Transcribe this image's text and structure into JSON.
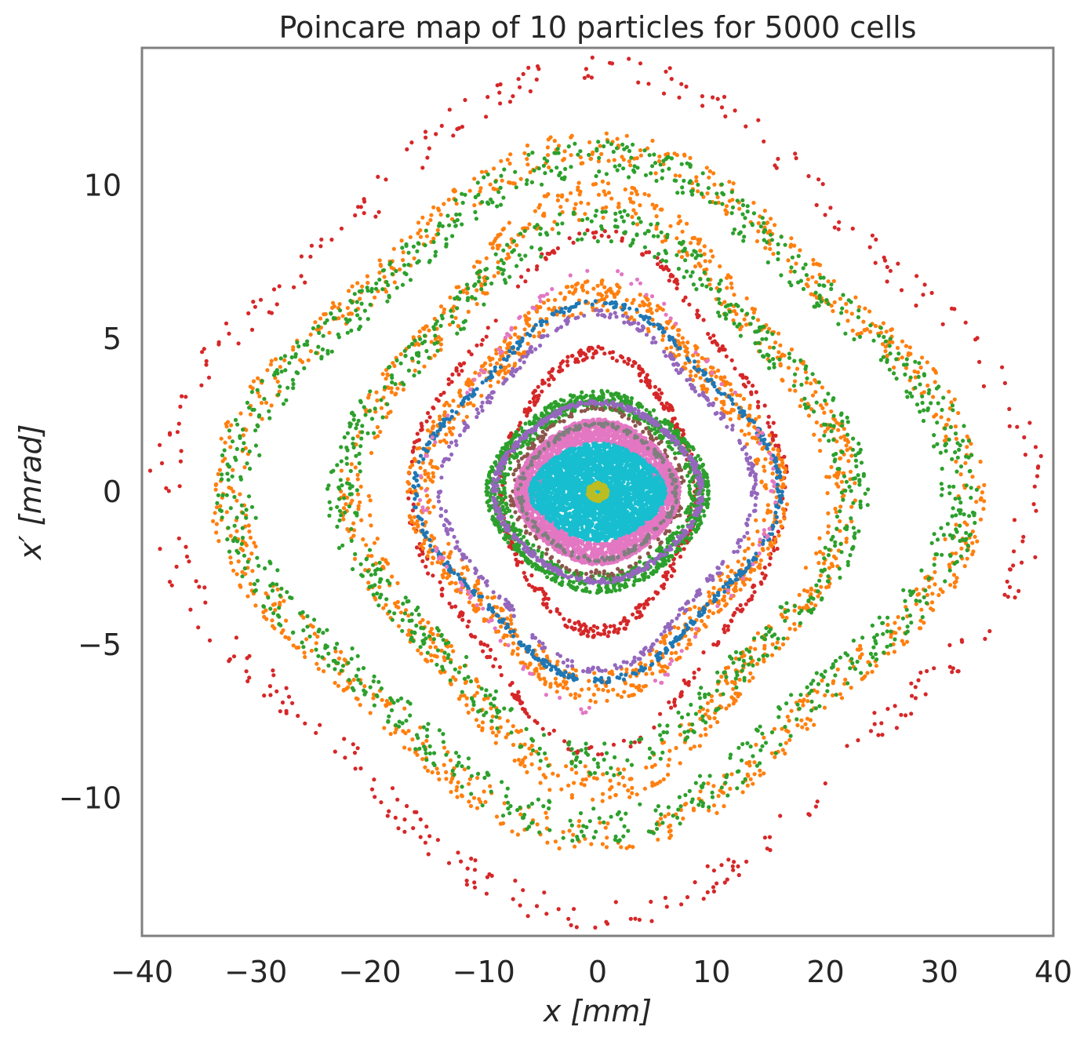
{
  "chart_data": {
    "type": "scatter",
    "title": "Poincare map of 10 particles for 5000 cells",
    "xlabel": "x [mm]",
    "ylabel": "x′ [mrad]",
    "xlim": [
      -40,
      40
    ],
    "ylim": [
      -14.5,
      14.5
    ],
    "xticks": [
      -40,
      -30,
      -20,
      -10,
      0,
      10,
      20,
      30,
      40
    ],
    "yticks": [
      -10,
      -5,
      0,
      5,
      10
    ],
    "xtick_labels": [
      "−40",
      "−30",
      "−20",
      "−10",
      "0",
      "10",
      "20",
      "30",
      "40"
    ],
    "ytick_labels": [
      "−10",
      "−5",
      "0",
      "5",
      "10"
    ],
    "grid": false,
    "legend": "none",
    "series": [
      {
        "color": "#d62728",
        "orbits": [
          {
            "ax": 36.5,
            "ay": 13.2,
            "spread": 0.07,
            "count": 360
          },
          {
            "ax": 15.5,
            "ay": 8.0,
            "spread": 0.04,
            "count": 320
          },
          {
            "ax": 8.5,
            "ay": 4.6,
            "spread": 0.08,
            "count": 380
          }
        ]
      },
      {
        "color": "#ff7f0e",
        "orbits": [
          {
            "ax": 31.5,
            "ay": 10.9,
            "spread": 0.09,
            "count": 850
          },
          {
            "ax": 21.0,
            "ay": 9.4,
            "spread": 0.12,
            "count": 800
          },
          {
            "ax": 15.5,
            "ay": 6.4,
            "spread": 0.15,
            "count": 900
          }
        ]
      },
      {
        "color": "#2ca02c",
        "orbits": [
          {
            "ax": 31.0,
            "ay": 10.6,
            "spread": 0.1,
            "count": 900
          },
          {
            "ax": 22.0,
            "ay": 8.6,
            "spread": 0.12,
            "count": 700
          },
          {
            "ax": 9.5,
            "ay": 3.2,
            "spread": 0.18,
            "count": 1000
          }
        ]
      },
      {
        "color": "#1f77b4",
        "orbits": [
          {
            "ax": 15.0,
            "ay": 5.8,
            "spread": 0.03,
            "count": 500
          }
        ]
      },
      {
        "color": "#9467bd",
        "orbits": [
          {
            "ax": 13.0,
            "ay": 5.5,
            "spread": 0.04,
            "count": 350
          },
          {
            "ax": 9.0,
            "ay": 2.9,
            "spread": 0.05,
            "count": 500
          }
        ]
      },
      {
        "color": "#8c564b",
        "orbits": [
          {
            "ax": 7.5,
            "ay": 2.7,
            "spread": 0.08,
            "count": 150
          }
        ]
      },
      {
        "color": "#e377c2",
        "orbits": [
          {
            "ax": 7.0,
            "ay": 2.3,
            "spread": 0.3,
            "count": 2600
          },
          {
            "ax": 14.5,
            "ay": 6.8,
            "spread": 0.04,
            "count": 120
          }
        ]
      },
      {
        "color": "#7f7f7f",
        "orbits": [
          {
            "ax": 6.8,
            "ay": 2.2,
            "spread": 0.06,
            "count": 200
          }
        ]
      },
      {
        "color": "#17becf",
        "orbits": [
          {
            "ax": 5.8,
            "ay": 1.55,
            "spread": 1.0,
            "count": 2800
          }
        ]
      },
      {
        "color": "#bcbd22",
        "orbits": [
          {
            "ax": 0.9,
            "ay": 0.3,
            "spread": 0.6,
            "count": 120
          }
        ]
      }
    ]
  }
}
